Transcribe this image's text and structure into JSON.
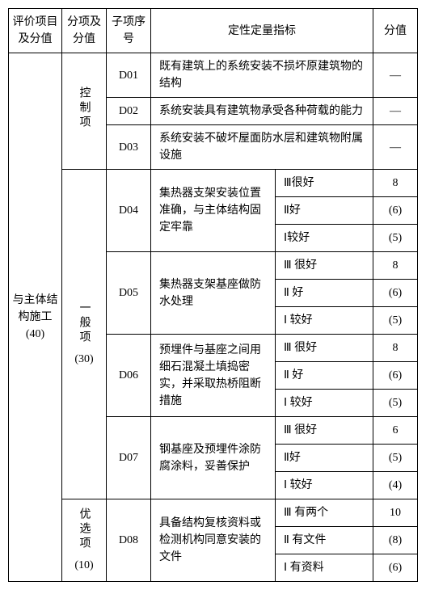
{
  "headers": {
    "col1": "评价项目及分值",
    "col2": "分项及分值",
    "col3": "子项序号",
    "col4": "定性定量指标",
    "col5": "分值"
  },
  "mainCategory": {
    "label": "与主体结构施工",
    "score": "(40)"
  },
  "subCategories": {
    "control": {
      "label": "控制项"
    },
    "general": {
      "label": "一般项",
      "score": "(30)"
    },
    "optional": {
      "label": "优选项",
      "score": "(10)"
    }
  },
  "items": {
    "D01": {
      "code": "D01",
      "desc": "既有建筑上的系统安装不损坏原建筑物的结构",
      "score": "—"
    },
    "D02": {
      "code": "D02",
      "desc": "系统安装具有建筑物承受各种荷载的能力",
      "score": "—"
    },
    "D03": {
      "code": "D03",
      "desc": "系统安装不破坏屋面防水层和建筑物附属设施",
      "score": "—"
    },
    "D04": {
      "code": "D04",
      "desc": "集热器支架安装位置准确，与主体结构固定牢靠",
      "rows": [
        {
          "grade": "Ⅲ很好",
          "score": "8"
        },
        {
          "grade": "Ⅱ好",
          "score": "(6)"
        },
        {
          "grade": "Ⅰ较好",
          "score": "(5)"
        }
      ]
    },
    "D05": {
      "code": "D05",
      "desc": "集热器支架基座做防水处理",
      "rows": [
        {
          "grade": "Ⅲ 很好",
          "score": "8"
        },
        {
          "grade": "Ⅱ 好",
          "score": "(6)"
        },
        {
          "grade": "Ⅰ 较好",
          "score": "(5)"
        }
      ]
    },
    "D06": {
      "code": "D06",
      "desc": "预埋件与基座之间用细石混凝土填捣密实，并采取热桥阻断措施",
      "rows": [
        {
          "grade": "Ⅲ 很好",
          "score": "8"
        },
        {
          "grade": "Ⅱ 好",
          "score": "(6)"
        },
        {
          "grade": "Ⅰ 较好",
          "score": "(5)"
        }
      ]
    },
    "D07": {
      "code": "D07",
      "desc": "钢基座及预埋件涂防腐涂料，妥善保护",
      "rows": [
        {
          "grade": "Ⅲ 很好",
          "score": "6"
        },
        {
          "grade": "Ⅱ好",
          "score": "(5)"
        },
        {
          "grade": "Ⅰ 较好",
          "score": "(4)"
        }
      ]
    },
    "D08": {
      "code": "D08",
      "desc": "具备结构复核资料或检测机构同意安装的文件",
      "rows": [
        {
          "grade": "Ⅲ 有两个",
          "score": "10"
        },
        {
          "grade": "Ⅱ 有文件",
          "score": "(8)"
        },
        {
          "grade": "Ⅰ 有资料",
          "score": "(6)"
        }
      ]
    }
  }
}
